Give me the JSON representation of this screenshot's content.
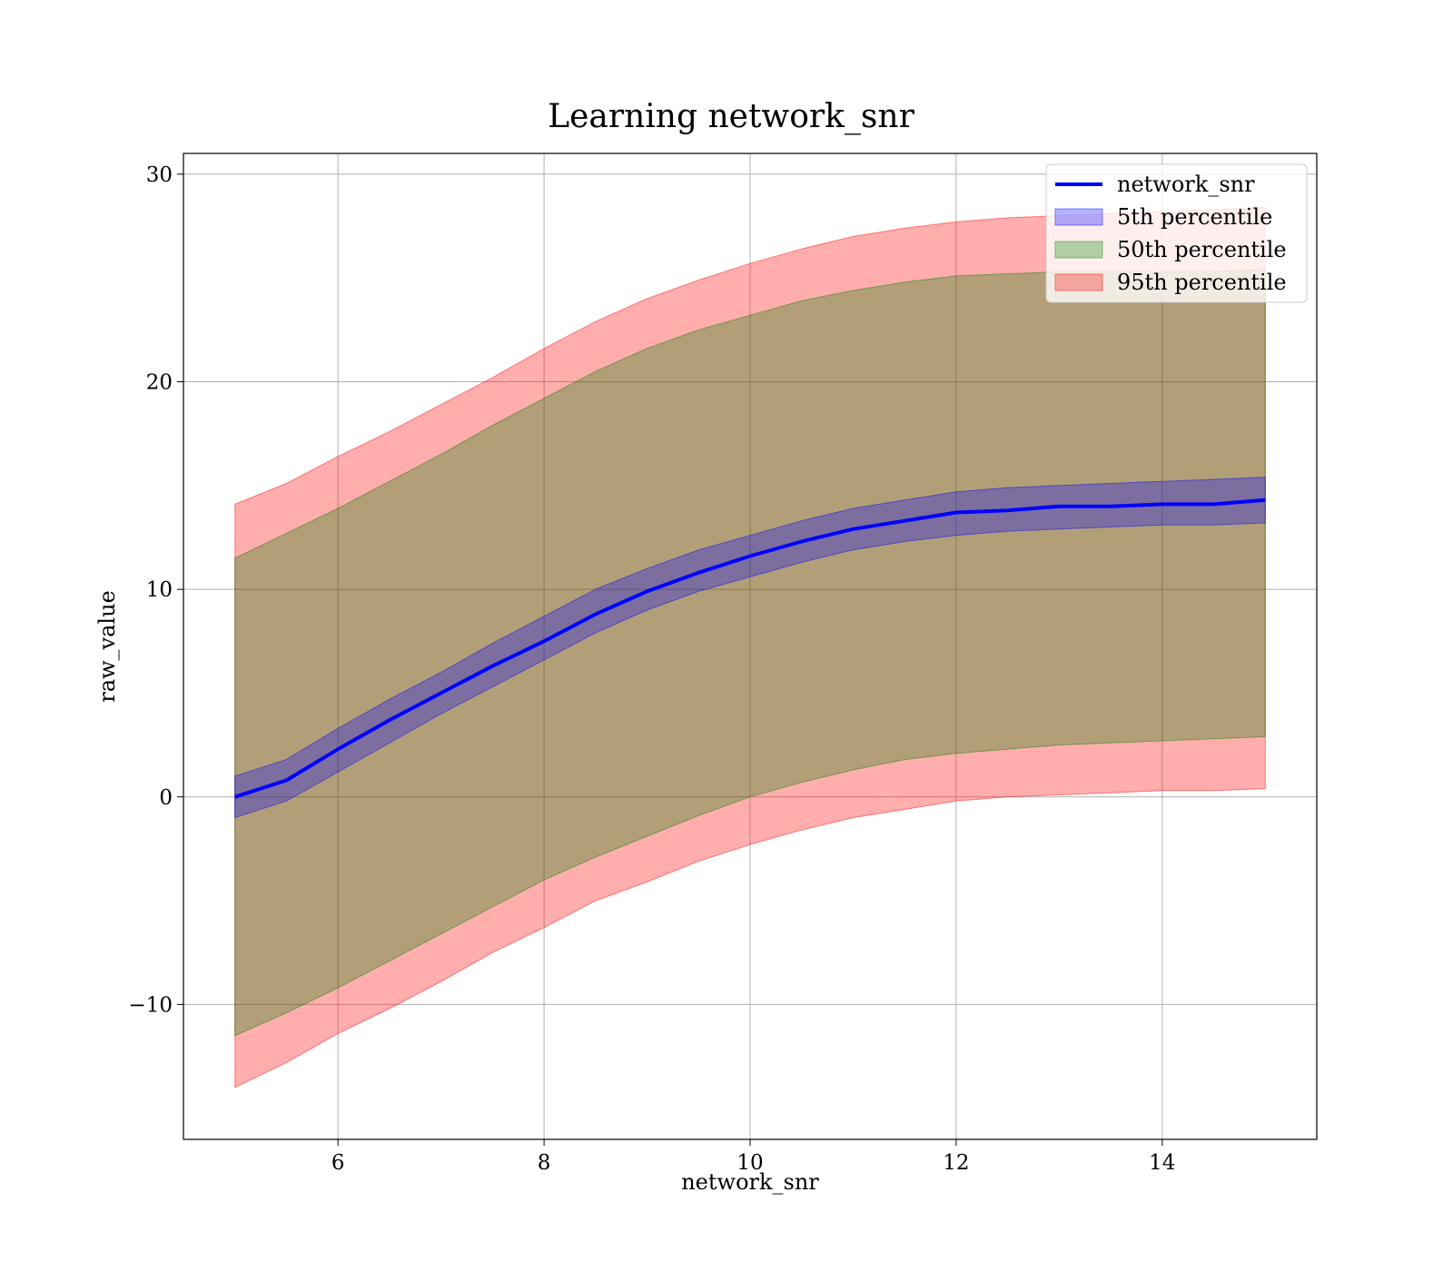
{
  "chart_data": {
    "type": "area",
    "title": "Learning network_snr",
    "xlabel": "network_snr",
    "ylabel": "raw_value",
    "xlim": [
      4.5,
      15.5
    ],
    "ylim": [
      -16.5,
      31
    ],
    "grid": true,
    "legend_placement": "top-right",
    "x_ticks": [
      6,
      8,
      10,
      12,
      14
    ],
    "x_tick_labels": [
      "6",
      "8",
      "10",
      "12",
      "14"
    ],
    "y_ticks": [
      -10,
      0,
      10,
      20,
      30
    ],
    "y_tick_labels": [
      "−10",
      "0",
      "10",
      "20",
      "30"
    ],
    "x": [
      5,
      5.5,
      6,
      6.5,
      7,
      7.5,
      8,
      8.5,
      9,
      9.5,
      10,
      10.5,
      11,
      11.5,
      12,
      12.5,
      13,
      13.5,
      14,
      14.5,
      15
    ],
    "line": {
      "name": "network_snr",
      "color": "#0000ff",
      "values": [
        0.0,
        0.8,
        2.3,
        3.7,
        5.0,
        6.3,
        7.5,
        8.8,
        9.9,
        10.8,
        11.6,
        12.3,
        12.9,
        13.3,
        13.7,
        13.8,
        14.0,
        14.0,
        14.1,
        14.1,
        14.3
      ]
    },
    "bands": [
      {
        "name": "95th percentile",
        "color": "#ff0000",
        "opacity": 0.32,
        "lower": [
          -14.0,
          -12.8,
          -11.4,
          -10.2,
          -8.9,
          -7.5,
          -6.3,
          -5.0,
          -4.1,
          -3.1,
          -2.3,
          -1.6,
          -1.0,
          -0.6,
          -0.2,
          0.0,
          0.1,
          0.2,
          0.3,
          0.3,
          0.4
        ],
        "upper": [
          14.1,
          15.1,
          16.4,
          17.6,
          18.9,
          20.2,
          21.6,
          22.9,
          24.0,
          24.9,
          25.7,
          26.4,
          27.0,
          27.4,
          27.7,
          27.9,
          28.0,
          28.1,
          28.2,
          28.3,
          28.4
        ]
      },
      {
        "name": "50th percentile",
        "color": "#008000",
        "opacity": 0.3,
        "lower": [
          -11.5,
          -10.4,
          -9.2,
          -7.9,
          -6.6,
          -5.3,
          -4.0,
          -2.9,
          -1.9,
          -0.9,
          0.0,
          0.7,
          1.3,
          1.8,
          2.1,
          2.3,
          2.5,
          2.6,
          2.7,
          2.8,
          2.9
        ],
        "upper": [
          11.5,
          12.7,
          13.9,
          15.2,
          16.5,
          17.9,
          19.2,
          20.5,
          21.6,
          22.5,
          23.2,
          23.9,
          24.4,
          24.8,
          25.1,
          25.2,
          25.3,
          25.3,
          25.3,
          25.3,
          25.4
        ]
      },
      {
        "name": "5th percentile",
        "color": "#0000ff",
        "opacity": 0.3,
        "lower": [
          -1.0,
          -0.2,
          1.2,
          2.6,
          4.0,
          5.3,
          6.6,
          7.9,
          9.0,
          9.9,
          10.6,
          11.3,
          11.9,
          12.3,
          12.6,
          12.8,
          12.9,
          13.0,
          13.1,
          13.1,
          13.2
        ],
        "upper": [
          1.0,
          1.8,
          3.3,
          4.7,
          6.0,
          7.4,
          8.7,
          10.0,
          11.0,
          11.9,
          12.6,
          13.3,
          13.9,
          14.3,
          14.7,
          14.9,
          15.0,
          15.1,
          15.2,
          15.3,
          15.4
        ]
      }
    ],
    "legend": [
      {
        "label": "network_snr",
        "kind": "line",
        "color": "#0000ff"
      },
      {
        "label": "5th percentile",
        "kind": "patch",
        "color": "#0000ff"
      },
      {
        "label": "50th percentile",
        "kind": "patch",
        "color": "#008000"
      },
      {
        "label": "95th percentile",
        "kind": "patch",
        "color": "#ff0000"
      }
    ]
  }
}
